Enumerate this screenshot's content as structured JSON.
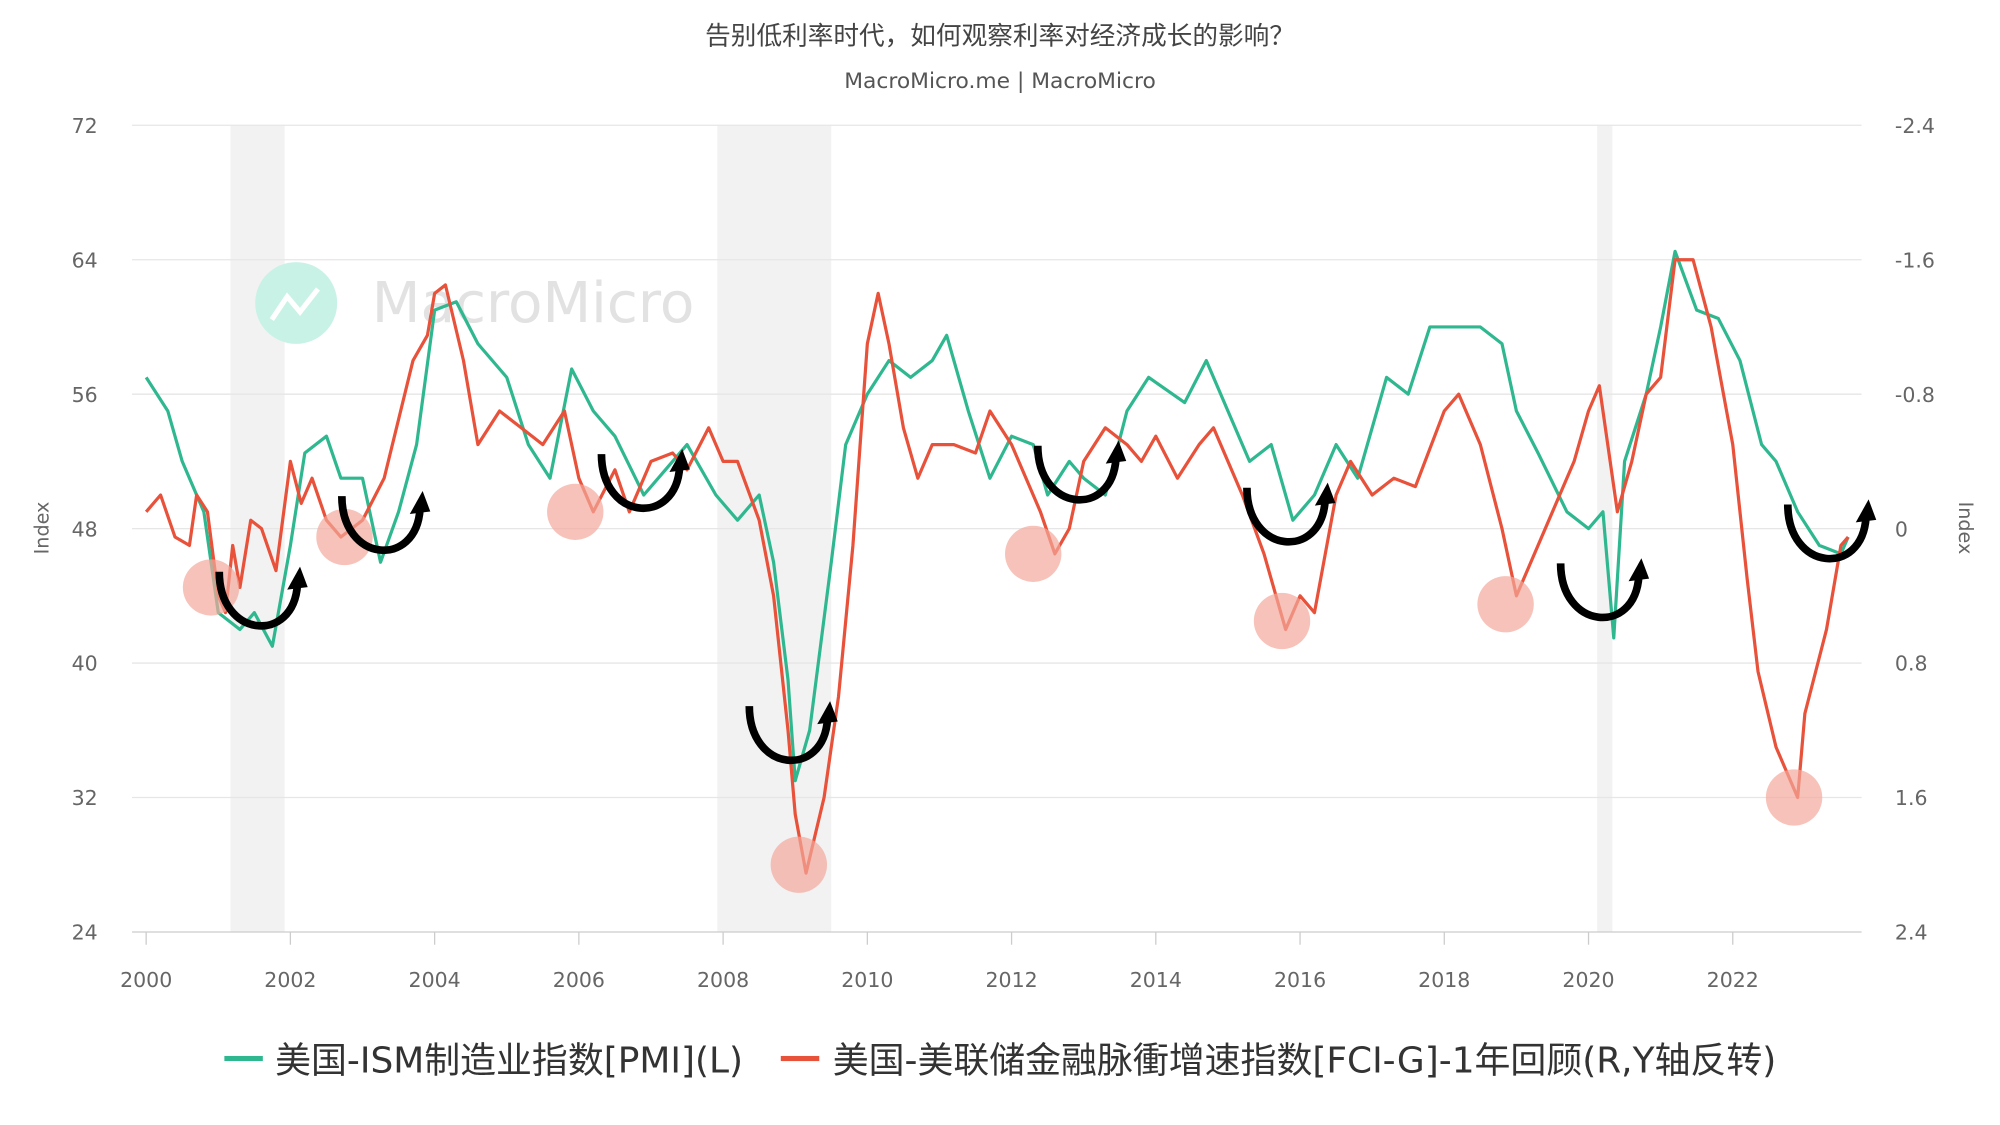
{
  "colors": {
    "pmi": "#2fb88f",
    "fci": "#e8513a",
    "recession": "#f2f2f2",
    "grid": "#e6e6e6",
    "highlight": "#f4a89b"
  },
  "chart_data": {
    "type": "line",
    "title": "告别低利率时代，如何观察利率对经济成长的影响？",
    "subtitle": "MacroMicro.me | MacroMicro",
    "watermark": "MacroMicro",
    "xlabel": "",
    "ylabel_left": "Index",
    "ylabel_right": "Index",
    "xlim": [
      2000,
      2023.9
    ],
    "x_ticks": [
      "2000",
      "2002",
      "2004",
      "2006",
      "2008",
      "2010",
      "2012",
      "2014",
      "2016",
      "2018",
      "2020",
      "2022"
    ],
    "ylim_left": [
      24,
      72
    ],
    "y_ticks_left": [
      "72",
      "64",
      "56",
      "48",
      "40",
      "32",
      "24"
    ],
    "ylim_right": [
      -2.4,
      2.4
    ],
    "right_axis_reversed": true,
    "y_ticks_right": [
      "-2.4",
      "-1.6",
      "-0.8",
      "0",
      "0.8",
      "1.6",
      "2.4"
    ],
    "grid": true,
    "legend": "bottom",
    "recessions": [
      [
        2001.17,
        2001.92
      ],
      [
        2007.92,
        2009.5
      ],
      [
        2020.12,
        2020.33
      ]
    ],
    "series": [
      {
        "name": "美国-ISM制造业指数[PMI](L)",
        "axis": "left",
        "color": "#2fb88f",
        "x": [
          2000.0,
          2000.3,
          2000.5,
          2000.8,
          2001.0,
          2001.3,
          2001.5,
          2001.75,
          2002.0,
          2002.2,
          2002.5,
          2002.7,
          2003.0,
          2003.25,
          2003.5,
          2003.75,
          2004.0,
          2004.3,
          2004.6,
          2005.0,
          2005.3,
          2005.6,
          2005.9,
          2006.2,
          2006.5,
          2006.9,
          2007.2,
          2007.5,
          2007.9,
          2008.2,
          2008.5,
          2008.7,
          2008.9,
          2009.0,
          2009.2,
          2009.5,
          2009.7,
          2010.0,
          2010.3,
          2010.6,
          2010.9,
          2011.1,
          2011.4,
          2011.7,
          2012.0,
          2012.3,
          2012.5,
          2012.8,
          2013.0,
          2013.3,
          2013.6,
          2013.9,
          2014.4,
          2014.7,
          2015.0,
          2015.3,
          2015.6,
          2015.9,
          2016.2,
          2016.5,
          2016.8,
          2017.2,
          2017.5,
          2017.8,
          2018.2,
          2018.5,
          2018.8,
          2019.0,
          2019.3,
          2019.7,
          2020.0,
          2020.2,
          2020.35,
          2020.5,
          2020.8,
          2021.0,
          2021.2,
          2021.5,
          2021.8,
          2022.1,
          2022.4,
          2022.6,
          2022.9,
          2023.2,
          2023.5,
          2023.6
        ],
        "values": [
          57,
          55,
          52,
          49,
          43,
          42,
          43,
          41,
          47,
          52.5,
          53.5,
          51,
          51,
          46,
          49,
          53,
          61,
          61.5,
          59,
          57,
          53,
          51,
          57.5,
          55,
          53.5,
          50,
          51.5,
          53,
          50,
          48.5,
          50,
          46,
          39,
          33,
          36,
          46,
          53,
          56,
          58,
          57,
          58,
          59.5,
          55,
          51,
          53.5,
          53,
          50,
          52,
          51,
          50,
          55,
          57,
          55.5,
          58,
          55,
          52,
          53,
          48.5,
          50,
          53,
          51,
          57,
          56,
          60,
          60,
          60,
          59,
          55,
          52.5,
          49,
          48,
          49,
          41.5,
          52,
          56,
          60,
          64.5,
          61,
          60.5,
          58,
          53,
          52,
          49,
          47,
          46.5,
          47.5
        ]
      },
      {
        "name": "美国-美联储金融脉衝增速指数[FCI-G]-1年回顾(R,Y轴反转)",
        "axis": "right",
        "color": "#e8513a",
        "x": [
          2000.0,
          2000.2,
          2000.4,
          2000.6,
          2000.7,
          2000.85,
          2001.0,
          2001.1,
          2001.2,
          2001.3,
          2001.45,
          2001.6,
          2001.8,
          2002.0,
          2002.15,
          2002.3,
          2002.5,
          2002.7,
          2003.0,
          2003.3,
          2003.7,
          2003.9,
          2004.0,
          2004.15,
          2004.4,
          2004.6,
          2004.9,
          2005.2,
          2005.5,
          2005.8,
          2006.0,
          2006.2,
          2006.5,
          2006.7,
          2007.0,
          2007.3,
          2007.5,
          2007.8,
          2008.0,
          2008.2,
          2008.5,
          2008.7,
          2008.9,
          2009.0,
          2009.15,
          2009.4,
          2009.6,
          2009.8,
          2010.0,
          2010.15,
          2010.3,
          2010.5,
          2010.7,
          2010.9,
          2011.2,
          2011.5,
          2011.7,
          2012.0,
          2012.4,
          2012.6,
          2012.8,
          2013.0,
          2013.3,
          2013.6,
          2013.8,
          2014.0,
          2014.3,
          2014.6,
          2014.8,
          2015.2,
          2015.5,
          2015.8,
          2016.0,
          2016.2,
          2016.5,
          2016.7,
          2017.0,
          2017.3,
          2017.6,
          2018.0,
          2018.2,
          2018.5,
          2018.8,
          2019.0,
          2019.2,
          2019.5,
          2019.8,
          2020.0,
          2020.15,
          2020.3,
          2020.4,
          2020.6,
          2020.8,
          2021.0,
          2021.2,
          2021.45,
          2021.7,
          2022.0,
          2022.2,
          2022.35,
          2022.6,
          2022.9,
          2023.0,
          2023.3,
          2023.5,
          2023.6
        ],
        "values": [
          -0.1,
          -0.2,
          0.05,
          0.1,
          -0.2,
          -0.1,
          0.4,
          0.5,
          0.1,
          0.35,
          -0.05,
          0,
          0.25,
          -0.4,
          -0.15,
          -0.3,
          -0.05,
          0.05,
          -0.05,
          -0.3,
          -1.0,
          -1.15,
          -1.4,
          -1.45,
          -1.0,
          -0.5,
          -0.7,
          -0.6,
          -0.5,
          -0.7,
          -0.3,
          -0.1,
          -0.35,
          -0.1,
          -0.4,
          -0.45,
          -0.35,
          -0.6,
          -0.4,
          -0.4,
          -0.05,
          0.4,
          1.2,
          1.7,
          2.05,
          1.6,
          1.0,
          0.1,
          -1.1,
          -1.4,
          -1.1,
          -0.6,
          -0.3,
          -0.5,
          -0.5,
          -0.45,
          -0.7,
          -0.5,
          -0.1,
          0.15,
          0,
          -0.4,
          -0.6,
          -0.5,
          -0.4,
          -0.55,
          -0.3,
          -0.5,
          -0.6,
          -0.2,
          0.15,
          0.6,
          0.4,
          0.5,
          -0.2,
          -0.4,
          -0.2,
          -0.3,
          -0.25,
          -0.7,
          -0.8,
          -0.5,
          0,
          0.4,
          0.2,
          -0.1,
          -0.4,
          -0.7,
          -0.85,
          -0.4,
          -0.1,
          -0.4,
          -0.8,
          -0.9,
          -1.6,
          -1.6,
          -1.2,
          -0.5,
          0.3,
          0.85,
          1.3,
          1.6,
          1.1,
          0.6,
          0.1,
          0.05
        ]
      }
    ],
    "annotations": {
      "highlight_circles": [
        [
          2000.9,
          44.5
        ],
        [
          2002.75,
          47.5
        ],
        [
          2005.95,
          49
        ],
        [
          2009.05,
          28
        ],
        [
          2012.3,
          46.5
        ],
        [
          2015.75,
          42.5
        ],
        [
          2018.85,
          43.5
        ],
        [
          2022.85,
          32
        ]
      ],
      "rebound_arrows": [
        [
          2001.6,
          43
        ],
        [
          2003.3,
          47.5
        ],
        [
          2006.9,
          50
        ],
        [
          2008.95,
          35
        ],
        [
          2012.95,
          50.5
        ],
        [
          2015.85,
          48
        ],
        [
          2020.2,
          43.5
        ],
        [
          2023.35,
          47
        ]
      ]
    }
  }
}
